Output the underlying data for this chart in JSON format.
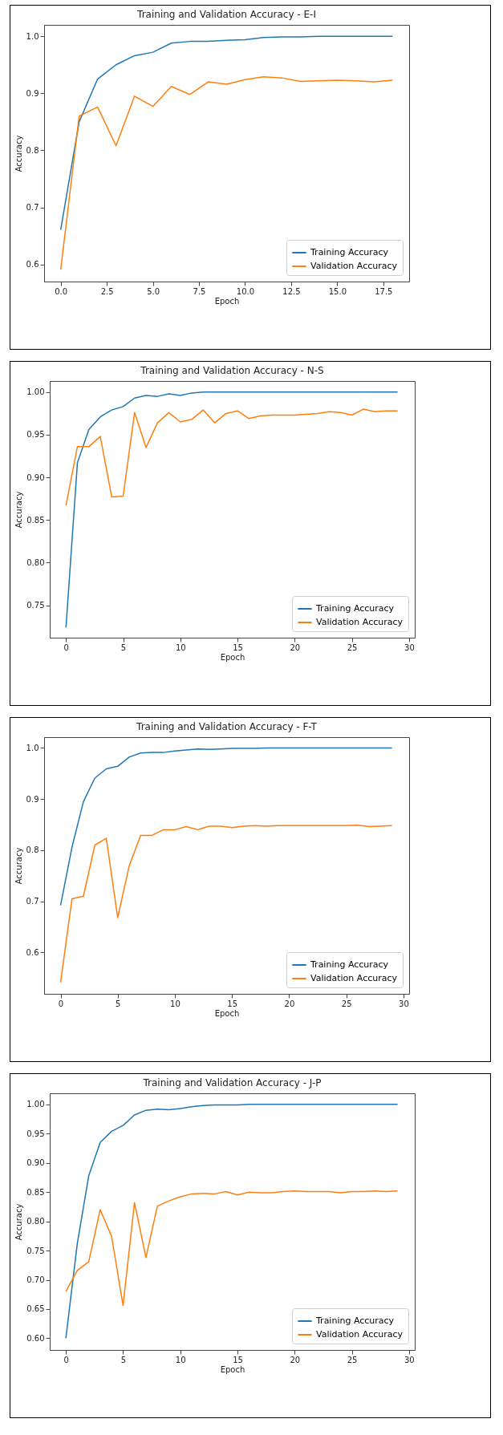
{
  "chart_data": [
    {
      "type": "line",
      "title": "Training and Validation Accuracy - E-I",
      "xlabel": "Epoch",
      "ylabel": "Accuracy",
      "legend": "bottom right",
      "grid": false,
      "x": [
        0,
        1,
        2,
        3,
        4,
        5,
        6,
        7,
        8,
        9,
        10,
        11,
        12,
        13,
        14,
        15,
        16,
        17,
        18
      ],
      "xlim": [
        -0.9,
        18.9
      ],
      "ylim": [
        0.57,
        1.02
      ],
      "xticks": [
        {
          "value": 0,
          "label": "0.0"
        },
        2.5,
        {
          "value": 5,
          "label": "5.0"
        },
        7.5,
        {
          "value": 10,
          "label": "10.0"
        },
        12.5,
        {
          "value": 15,
          "label": "15.0"
        },
        17.5
      ],
      "yticks": [
        0.6,
        0.7,
        0.8,
        0.9,
        {
          "value": 1,
          "label": "1.0"
        }
      ],
      "series": [
        {
          "name": "Training Accuracy",
          "color": "#1f77b4",
          "values": [
            0.661,
            0.85,
            0.925,
            0.95,
            0.966,
            0.972,
            0.988,
            0.991,
            0.991,
            0.993,
            0.994,
            0.998,
            0.999,
            0.999,
            1.0,
            1.0,
            1.0,
            1.0,
            1.0
          ]
        },
        {
          "name": "Validation Accuracy",
          "color": "#ff7f0e",
          "values": [
            0.591,
            0.86,
            0.876,
            0.808,
            0.895,
            0.877,
            0.912,
            0.898,
            0.92,
            0.916,
            0.924,
            0.929,
            0.927,
            0.921,
            0.922,
            0.923,
            0.922,
            0.92,
            0.923
          ]
        }
      ]
    },
    {
      "type": "line",
      "title": "Training and Validation Accuracy - N-S",
      "xlabel": "Epoch",
      "ylabel": "Accuracy",
      "legend": "bottom right",
      "grid": false,
      "x": [
        0,
        1,
        2,
        3,
        4,
        5,
        6,
        7,
        8,
        9,
        10,
        11,
        12,
        13,
        14,
        15,
        16,
        17,
        18,
        19,
        20,
        21,
        22,
        23,
        24,
        25,
        26,
        27,
        28,
        29
      ],
      "xlim": [
        -1.42,
        30.5
      ],
      "ylim": [
        0.712,
        1.013
      ],
      "xticks": [
        0,
        5,
        10,
        15,
        20,
        25,
        30
      ],
      "yticks": [
        0.75,
        {
          "value": 0.8,
          "label": "0.80"
        },
        0.85,
        {
          "value": 0.9,
          "label": "0.90"
        },
        0.95,
        {
          "value": 1,
          "label": "1.00"
        }
      ],
      "series": [
        {
          "name": "Training Accuracy",
          "color": "#1f77b4",
          "values": [
            0.724,
            0.917,
            0.956,
            0.971,
            0.979,
            0.983,
            0.993,
            0.996,
            0.995,
            0.998,
            0.996,
            0.999,
            1.0,
            1.0,
            1.0,
            1.0,
            1.0,
            1.0,
            1.0,
            1.0,
            1.0,
            1.0,
            1.0,
            1.0,
            1.0,
            1.0,
            1.0,
            1.0,
            1.0,
            1.0
          ]
        },
        {
          "name": "Validation Accuracy",
          "color": "#ff7f0e",
          "values": [
            0.867,
            0.936,
            0.936,
            0.948,
            0.877,
            0.878,
            0.976,
            0.935,
            0.964,
            0.976,
            0.965,
            0.968,
            0.979,
            0.964,
            0.975,
            0.978,
            0.969,
            0.972,
            0.973,
            0.973,
            0.973,
            0.974,
            0.975,
            0.977,
            0.976,
            0.973,
            0.98,
            0.977,
            0.978,
            0.978
          ]
        }
      ]
    },
    {
      "type": "line",
      "title": "Training and Validation Accuracy - F-T",
      "xlabel": "Epoch",
      "ylabel": "Accuracy",
      "legend": "bottom right",
      "grid": false,
      "x": [
        0,
        1,
        2,
        3,
        4,
        5,
        6,
        7,
        8,
        9,
        10,
        11,
        12,
        13,
        14,
        15,
        16,
        17,
        18,
        19,
        20,
        21,
        22,
        23,
        24,
        25,
        26,
        27,
        28,
        29
      ],
      "xlim": [
        -1.44,
        30.5
      ],
      "ylim": [
        0.519,
        1.021
      ],
      "xticks": [
        0,
        5,
        10,
        15,
        20,
        25,
        30
      ],
      "yticks": [
        0.6,
        0.7,
        0.8,
        0.9,
        {
          "value": 1,
          "label": "1.0"
        }
      ],
      "series": [
        {
          "name": "Training Accuracy",
          "color": "#1f77b4",
          "values": [
            0.692,
            0.806,
            0.895,
            0.941,
            0.959,
            0.964,
            0.982,
            0.99,
            0.991,
            0.991,
            0.994,
            0.996,
            0.998,
            0.997,
            0.998,
            0.999,
            0.999,
            0.999,
            1.0,
            1.0,
            1.0,
            1.0,
            1.0,
            1.0,
            1.0,
            1.0,
            1.0,
            1.0,
            1.0,
            1.0
          ]
        },
        {
          "name": "Validation Accuracy",
          "color": "#ff7f0e",
          "values": [
            0.541,
            0.705,
            0.71,
            0.81,
            0.823,
            0.668,
            0.769,
            0.829,
            0.829,
            0.84,
            0.84,
            0.846,
            0.84,
            0.847,
            0.847,
            0.844,
            0.847,
            0.848,
            0.847,
            0.848,
            0.848,
            0.848,
            0.848,
            0.848,
            0.848,
            0.848,
            0.849,
            0.846,
            0.847,
            0.848
          ]
        }
      ]
    },
    {
      "type": "line",
      "title": "Training and Validation Accuracy - J-P",
      "xlabel": "Epoch",
      "ylabel": "Accuracy",
      "legend": "bottom right",
      "grid": false,
      "x": [
        0,
        1,
        2,
        3,
        4,
        5,
        6,
        7,
        8,
        9,
        10,
        11,
        12,
        13,
        14,
        15,
        16,
        17,
        18,
        19,
        20,
        21,
        22,
        23,
        24,
        25,
        26,
        27,
        28,
        29
      ],
      "xlim": [
        -1.41,
        30.5
      ],
      "ylim": [
        0.58,
        1.019
      ],
      "xticks": [
        0,
        5,
        10,
        15,
        20,
        25,
        30
      ],
      "yticks": [
        {
          "value": 0.6,
          "label": "0.60"
        },
        0.65,
        {
          "value": 0.7,
          "label": "0.70"
        },
        0.75,
        {
          "value": 0.8,
          "label": "0.80"
        },
        0.85,
        {
          "value": 0.9,
          "label": "0.90"
        },
        0.95,
        {
          "value": 1,
          "label": "1.00"
        }
      ],
      "series": [
        {
          "name": "Training Accuracy",
          "color": "#1f77b4",
          "values": [
            0.6,
            0.762,
            0.878,
            0.935,
            0.954,
            0.964,
            0.982,
            0.99,
            0.992,
            0.991,
            0.993,
            0.996,
            0.998,
            0.999,
            0.999,
            0.999,
            1.0,
            1.0,
            1.0,
            1.0,
            1.0,
            1.0,
            1.0,
            1.0,
            1.0,
            1.0,
            1.0,
            1.0,
            1.0,
            1.0
          ]
        },
        {
          "name": "Validation Accuracy",
          "color": "#ff7f0e",
          "values": [
            0.68,
            0.716,
            0.731,
            0.82,
            0.774,
            0.656,
            0.832,
            0.738,
            0.826,
            0.835,
            0.842,
            0.847,
            0.848,
            0.847,
            0.851,
            0.845,
            0.85,
            0.849,
            0.849,
            0.851,
            0.852,
            0.851,
            0.851,
            0.851,
            0.849,
            0.851,
            0.851,
            0.852,
            0.851,
            0.852
          ]
        }
      ]
    }
  ]
}
